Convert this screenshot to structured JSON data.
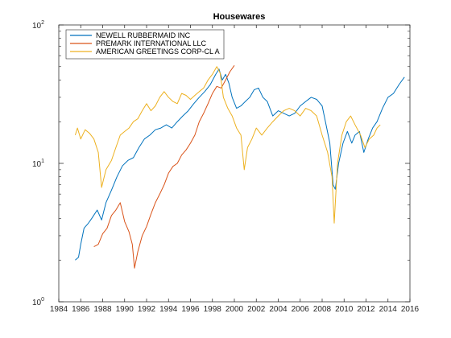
{
  "chart_data": {
    "type": "line",
    "title": "Housewares",
    "xlabel": "",
    "ylabel": "",
    "xlim": [
      1984,
      2016
    ],
    "ylim": [
      1,
      100
    ],
    "yscale": "log",
    "grid": false,
    "legend_position": "top-left",
    "x_ticks": [
      "1984",
      "1986",
      "1988",
      "1990",
      "1992",
      "1994",
      "1996",
      "1998",
      "2000",
      "2002",
      "2004",
      "2006",
      "2008",
      "2010",
      "2012",
      "2014",
      "2016"
    ],
    "y_ticks": [
      {
        "base": "10",
        "exp": "0"
      },
      {
        "base": "10",
        "exp": "1"
      },
      {
        "base": "10",
        "exp": "2"
      }
    ],
    "series": [
      {
        "name": "NEWELL RUBBERMAID INC",
        "color": "#0072BD",
        "points": [
          [
            1985.5,
            2.0
          ],
          [
            1985.8,
            2.1
          ],
          [
            1986.0,
            2.6
          ],
          [
            1986.3,
            3.4
          ],
          [
            1986.7,
            3.7
          ],
          [
            1987.0,
            4.0
          ],
          [
            1987.5,
            4.6
          ],
          [
            1987.9,
            3.9
          ],
          [
            1988.3,
            5.2
          ],
          [
            1988.8,
            6.4
          ],
          [
            1989.3,
            8.0
          ],
          [
            1989.8,
            9.6
          ],
          [
            1990.3,
            10.5
          ],
          [
            1990.8,
            11.0
          ],
          [
            1991.3,
            13.0
          ],
          [
            1991.8,
            15.0
          ],
          [
            1992.3,
            16.0
          ],
          [
            1992.8,
            17.5
          ],
          [
            1993.3,
            18.0
          ],
          [
            1993.8,
            19.0
          ],
          [
            1994.3,
            18.0
          ],
          [
            1994.8,
            20.0
          ],
          [
            1995.3,
            22.0
          ],
          [
            1995.8,
            24.0
          ],
          [
            1996.3,
            27.0
          ],
          [
            1996.8,
            30.0
          ],
          [
            1997.3,
            33.0
          ],
          [
            1997.8,
            37.0
          ],
          [
            1998.3,
            44.0
          ],
          [
            1998.6,
            48.0
          ],
          [
            1998.9,
            40.0
          ],
          [
            1999.2,
            44.0
          ],
          [
            1999.5,
            38.0
          ],
          [
            1999.8,
            30.0
          ],
          [
            2000.2,
            25.0
          ],
          [
            2000.6,
            26.0
          ],
          [
            2001.0,
            28.0
          ],
          [
            2001.4,
            30.0
          ],
          [
            2001.8,
            34.0
          ],
          [
            2002.2,
            35.0
          ],
          [
            2002.6,
            30.0
          ],
          [
            2003.0,
            28.0
          ],
          [
            2003.5,
            22.0
          ],
          [
            2004.0,
            24.0
          ],
          [
            2004.5,
            23.0
          ],
          [
            2005.0,
            22.0
          ],
          [
            2005.5,
            23.0
          ],
          [
            2006.0,
            26.0
          ],
          [
            2006.5,
            28.0
          ],
          [
            2007.0,
            30.0
          ],
          [
            2007.5,
            29.0
          ],
          [
            2008.0,
            26.0
          ],
          [
            2008.3,
            20.0
          ],
          [
            2008.7,
            14.0
          ],
          [
            2009.0,
            7.0
          ],
          [
            2009.2,
            6.5
          ],
          [
            2009.5,
            10.0
          ],
          [
            2009.9,
            14.0
          ],
          [
            2010.3,
            17.0
          ],
          [
            2010.7,
            14.0
          ],
          [
            2011.0,
            16.0
          ],
          [
            2011.4,
            17.0
          ],
          [
            2011.8,
            12.0
          ],
          [
            2012.2,
            15.0
          ],
          [
            2012.6,
            18.0
          ],
          [
            2013.0,
            20.0
          ],
          [
            2013.5,
            25.0
          ],
          [
            2014.0,
            30.0
          ],
          [
            2014.5,
            32.0
          ],
          [
            2015.0,
            37.0
          ],
          [
            2015.5,
            42.0
          ]
        ]
      },
      {
        "name": "PREMARK INTERNATIONAL LLC",
        "color": "#D95319",
        "points": [
          [
            1987.2,
            2.5
          ],
          [
            1987.6,
            2.6
          ],
          [
            1988.0,
            3.1
          ],
          [
            1988.4,
            3.4
          ],
          [
            1988.8,
            4.2
          ],
          [
            1989.2,
            4.6
          ],
          [
            1989.6,
            5.2
          ],
          [
            1990.0,
            3.8
          ],
          [
            1990.4,
            3.2
          ],
          [
            1990.7,
            2.6
          ],
          [
            1990.9,
            1.75
          ],
          [
            1991.2,
            2.3
          ],
          [
            1991.6,
            3.0
          ],
          [
            1992.0,
            3.5
          ],
          [
            1992.4,
            4.3
          ],
          [
            1992.8,
            5.2
          ],
          [
            1993.2,
            6.0
          ],
          [
            1993.6,
            7.0
          ],
          [
            1994.0,
            8.5
          ],
          [
            1994.4,
            9.5
          ],
          [
            1994.8,
            10.0
          ],
          [
            1995.2,
            11.5
          ],
          [
            1995.6,
            12.5
          ],
          [
            1996.0,
            14.0
          ],
          [
            1996.4,
            16.0
          ],
          [
            1996.8,
            20.0
          ],
          [
            1997.2,
            23.0
          ],
          [
            1997.6,
            27.0
          ],
          [
            1998.0,
            32.0
          ],
          [
            1998.4,
            36.0
          ],
          [
            1998.8,
            35.0
          ],
          [
            1999.2,
            40.0
          ],
          [
            1999.6,
            46.0
          ],
          [
            2000.0,
            51.0
          ]
        ]
      },
      {
        "name": "AMERICAN GREETINGS CORP-CL A",
        "color": "#EDB120",
        "points": [
          [
            1985.5,
            16.0
          ],
          [
            1985.7,
            18.0
          ],
          [
            1986.0,
            15.0
          ],
          [
            1986.4,
            17.5
          ],
          [
            1986.8,
            16.5
          ],
          [
            1987.2,
            15.0
          ],
          [
            1987.6,
            12.0
          ],
          [
            1987.9,
            6.7
          ],
          [
            1988.3,
            9.0
          ],
          [
            1988.8,
            10.5
          ],
          [
            1989.2,
            13.0
          ],
          [
            1989.6,
            16.0
          ],
          [
            1990.0,
            17.0
          ],
          [
            1990.4,
            18.0
          ],
          [
            1990.8,
            20.0
          ],
          [
            1991.2,
            21.0
          ],
          [
            1991.6,
            24.0
          ],
          [
            1992.0,
            27.0
          ],
          [
            1992.4,
            24.0
          ],
          [
            1992.8,
            26.0
          ],
          [
            1993.2,
            30.0
          ],
          [
            1993.6,
            33.0
          ],
          [
            1994.0,
            30.0
          ],
          [
            1994.4,
            28.0
          ],
          [
            1994.8,
            27.0
          ],
          [
            1995.2,
            32.0
          ],
          [
            1995.6,
            31.0
          ],
          [
            1996.0,
            29.0
          ],
          [
            1996.4,
            31.0
          ],
          [
            1996.8,
            33.0
          ],
          [
            1997.2,
            35.0
          ],
          [
            1997.6,
            40.0
          ],
          [
            1998.0,
            44.0
          ],
          [
            1998.4,
            50.0
          ],
          [
            1998.7,
            45.0
          ],
          [
            1999.0,
            30.0
          ],
          [
            1999.4,
            25.0
          ],
          [
            1999.8,
            22.0
          ],
          [
            2000.2,
            18.0
          ],
          [
            2000.6,
            16.0
          ],
          [
            2000.9,
            9.0
          ],
          [
            2001.2,
            13.0
          ],
          [
            2001.6,
            15.0
          ],
          [
            2002.0,
            18.0
          ],
          [
            2002.5,
            16.0
          ],
          [
            2003.0,
            18.0
          ],
          [
            2003.5,
            20.0
          ],
          [
            2004.0,
            22.0
          ],
          [
            2004.5,
            24.0
          ],
          [
            2005.0,
            25.0
          ],
          [
            2005.5,
            24.0
          ],
          [
            2006.0,
            22.0
          ],
          [
            2006.5,
            25.0
          ],
          [
            2007.0,
            24.0
          ],
          [
            2007.5,
            22.0
          ],
          [
            2008.0,
            16.0
          ],
          [
            2008.5,
            12.0
          ],
          [
            2008.9,
            8.0
          ],
          [
            2009.1,
            3.7
          ],
          [
            2009.4,
            10.0
          ],
          [
            2009.8,
            16.0
          ],
          [
            2010.2,
            20.0
          ],
          [
            2010.6,
            22.0
          ],
          [
            2011.0,
            19.0
          ],
          [
            2011.5,
            16.0
          ],
          [
            2011.9,
            13.0
          ],
          [
            2012.3,
            15.0
          ],
          [
            2012.7,
            16.0
          ],
          [
            2013.0,
            18.0
          ],
          [
            2013.3,
            19.0
          ]
        ]
      }
    ]
  }
}
